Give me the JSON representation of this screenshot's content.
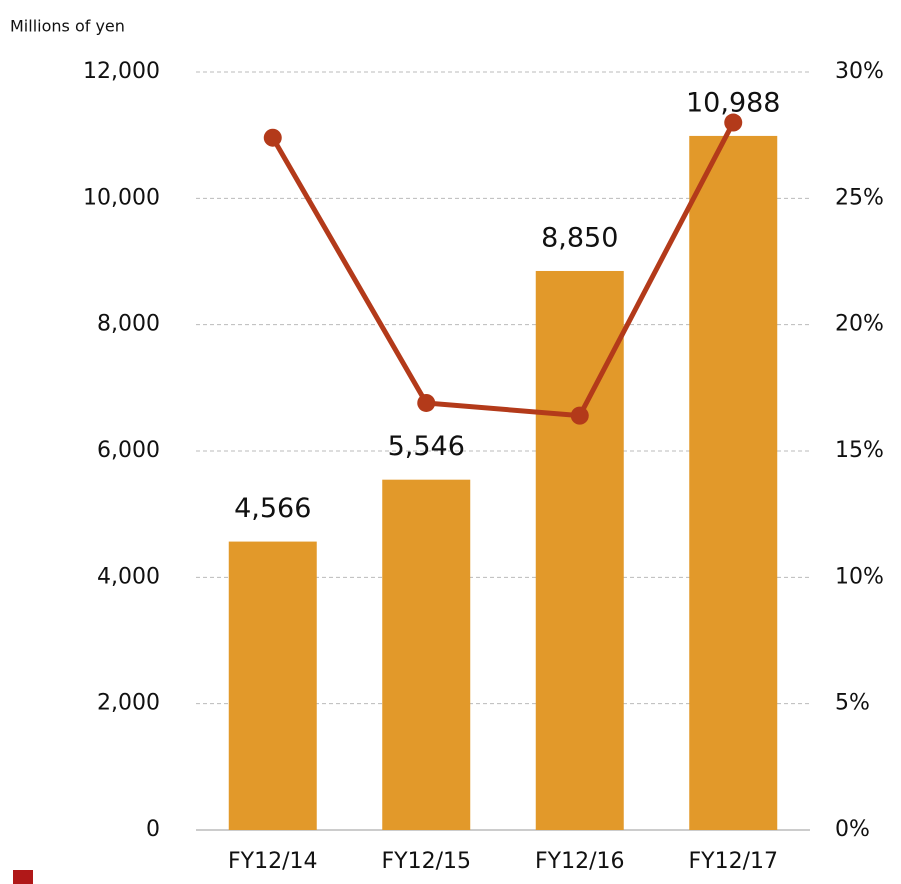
{
  "chart_data": {
    "type": "bar",
    "y_label": "Millions of yen",
    "categories": [
      "FY12/14",
      "FY12/15",
      "FY12/16",
      "FY12/17"
    ],
    "series": [
      {
        "type": "bar",
        "color": "#e2992a",
        "values": [
          4566,
          5546,
          8850,
          10988
        ],
        "value_labels": [
          "4,566",
          "5,546",
          "8,850",
          "10,988"
        ]
      },
      {
        "type": "line",
        "axis": "y2",
        "color": "#b33a1a",
        "values": [
          27.4,
          16.9,
          16.4,
          28.0
        ]
      }
    ],
    "ylim": [
      0,
      12000
    ],
    "yticks": [
      0,
      {
        "value": 2000,
        "label": "2,000"
      },
      {
        "value": 4000,
        "label": "4,000"
      },
      {
        "value": 6000,
        "label": "6,000"
      },
      {
        "value": 8000,
        "label": "8,000"
      },
      {
        "value": 10000,
        "label": "10,000"
      },
      {
        "value": 12000,
        "label": "12,000"
      }
    ],
    "y2lim": [
      0,
      30
    ],
    "y2ticks": [
      {
        "value": 0,
        "label": "0%"
      },
      {
        "value": 5,
        "label": "5%"
      },
      {
        "value": 10,
        "label": "10%"
      },
      {
        "value": 15,
        "label": "15%"
      },
      {
        "value": 20,
        "label": "20%"
      },
      {
        "value": 25,
        "label": "25%"
      },
      {
        "value": 30,
        "label": "30%"
      }
    ],
    "grid": true
  }
}
